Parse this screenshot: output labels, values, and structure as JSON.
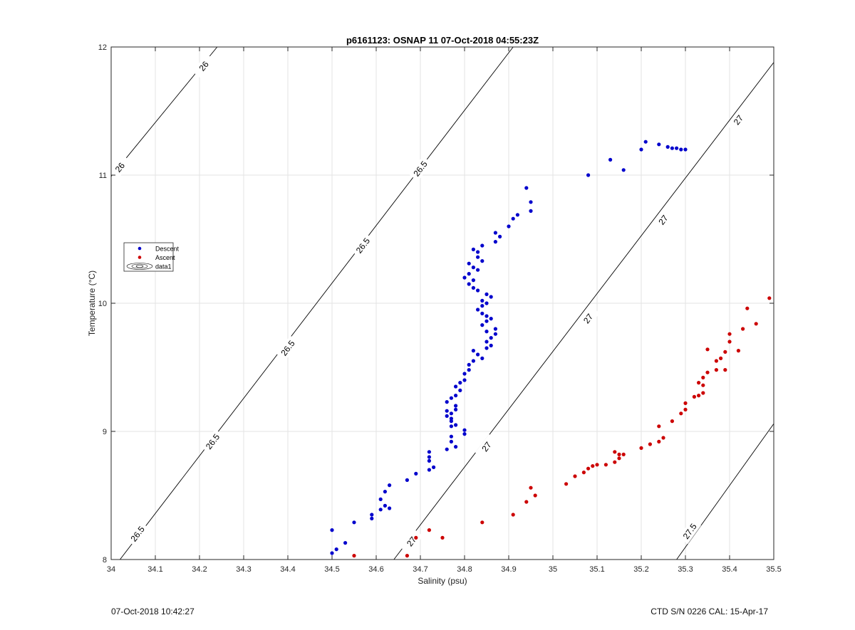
{
  "chart_data": {
    "type": "scatter",
    "title": "p6161123: OSNAP 11 07-Oct-2018 04:55:23Z",
    "xlabel": "Salinity (psu)",
    "ylabel": "Temperature (°C)",
    "xlim": [
      34,
      35.5
    ],
    "ylim": [
      8,
      12
    ],
    "xticks": [
      34,
      34.1,
      34.2,
      34.3,
      34.4,
      34.5,
      34.6,
      34.7,
      34.8,
      34.9,
      35,
      35.1,
      35.2,
      35.3,
      35.4,
      35.5
    ],
    "xtick_labels": [
      "34",
      "34.1",
      "34.2",
      "34.3",
      "34.4",
      "34.5",
      "34.6",
      "34.7",
      "34.8",
      "34.9",
      "35",
      "35.1",
      "35.2",
      "35.3",
      "35.4",
      "35.5"
    ],
    "yticks": [
      8,
      9,
      10,
      11,
      12
    ],
    "ytick_labels": [
      "8",
      "9",
      "10",
      "11",
      "12"
    ],
    "grid": true,
    "legend": {
      "placement": "left",
      "entries": [
        {
          "label": "Descent",
          "marker": "dot",
          "color": "#0000cc"
        },
        {
          "label": "Ascent",
          "marker": "dot",
          "color": "#cc0000"
        },
        {
          "label": "data1",
          "marker": "contour",
          "color": "#000000"
        }
      ]
    },
    "contours": [
      {
        "level": "26",
        "lines": [
          [
            [
              34.0,
              10.99
            ],
            [
              34.24,
              12.0
            ]
          ]
        ],
        "labels": [
          {
            "text": "26",
            "x": 34.21,
            "y": 11.85
          },
          {
            "text": "26",
            "x": 34.02,
            "y": 11.06
          }
        ]
      },
      {
        "level": "26.5",
        "lines": [
          [
            [
              34.02,
              8.0
            ],
            [
              34.91,
              12.0
            ]
          ]
        ],
        "labels": [
          {
            "text": "26.5",
            "x": 34.7,
            "y": 11.05
          },
          {
            "text": "26.5",
            "x": 34.57,
            "y": 10.45
          },
          {
            "text": "26.5",
            "x": 34.4,
            "y": 9.65
          },
          {
            "text": "26.5",
            "x": 34.23,
            "y": 8.92
          },
          {
            "text": "26.5",
            "x": 34.06,
            "y": 8.2
          }
        ]
      },
      {
        "level": "27",
        "lines": [
          [
            [
              34.64,
              8.0
            ],
            [
              35.5,
              11.88
            ]
          ]
        ],
        "labels": [
          {
            "text": "27",
            "x": 35.42,
            "y": 11.43
          },
          {
            "text": "27",
            "x": 35.25,
            "y": 10.65
          },
          {
            "text": "27",
            "x": 35.08,
            "y": 9.88
          },
          {
            "text": "27",
            "x": 34.85,
            "y": 8.88
          },
          {
            "text": "27",
            "x": 34.68,
            "y": 8.14
          }
        ]
      },
      {
        "level": "27.5",
        "lines": [
          [
            [
              35.28,
              8.0
            ],
            [
              35.5,
              9.06
            ]
          ]
        ],
        "labels": [
          {
            "text": "27.5",
            "x": 35.31,
            "y": 8.22
          }
        ]
      }
    ],
    "series": [
      {
        "name": "Descent",
        "color": "#0000cc",
        "points": [
          [
            34.5,
            8.05
          ],
          [
            34.51,
            8.08
          ],
          [
            34.5,
            8.23
          ],
          [
            34.53,
            8.13
          ],
          [
            34.55,
            8.29
          ],
          [
            34.59,
            8.32
          ],
          [
            34.59,
            8.35
          ],
          [
            34.61,
            8.39
          ],
          [
            34.62,
            8.42
          ],
          [
            34.61,
            8.47
          ],
          [
            34.63,
            8.4
          ],
          [
            34.62,
            8.53
          ],
          [
            34.63,
            8.58
          ],
          [
            34.67,
            8.62
          ],
          [
            34.69,
            8.67
          ],
          [
            34.72,
            8.7
          ],
          [
            34.73,
            8.72
          ],
          [
            34.72,
            8.77
          ],
          [
            34.72,
            8.8
          ],
          [
            34.72,
            8.84
          ],
          [
            34.76,
            8.86
          ],
          [
            34.78,
            8.88
          ],
          [
            34.77,
            8.92
          ],
          [
            34.77,
            8.96
          ],
          [
            34.8,
            8.98
          ],
          [
            34.8,
            9.01
          ],
          [
            34.78,
            9.05
          ],
          [
            34.77,
            9.04
          ],
          [
            34.77,
            9.08
          ],
          [
            34.77,
            9.1
          ],
          [
            34.76,
            9.12
          ],
          [
            34.77,
            9.14
          ],
          [
            34.76,
            9.16
          ],
          [
            34.78,
            9.17
          ],
          [
            34.78,
            9.2
          ],
          [
            34.76,
            9.23
          ],
          [
            34.77,
            9.26
          ],
          [
            34.78,
            9.28
          ],
          [
            34.79,
            9.32
          ],
          [
            34.78,
            9.35
          ],
          [
            34.79,
            9.38
          ],
          [
            34.8,
            9.4
          ],
          [
            34.8,
            9.45
          ],
          [
            34.81,
            9.48
          ],
          [
            34.81,
            9.52
          ],
          [
            34.82,
            9.55
          ],
          [
            34.84,
            9.57
          ],
          [
            34.83,
            9.6
          ],
          [
            34.82,
            9.63
          ],
          [
            34.85,
            9.65
          ],
          [
            34.86,
            9.67
          ],
          [
            34.85,
            9.7
          ],
          [
            34.86,
            9.73
          ],
          [
            34.87,
            9.76
          ],
          [
            34.85,
            9.78
          ],
          [
            34.87,
            9.8
          ],
          [
            34.84,
            9.83
          ],
          [
            34.85,
            9.86
          ],
          [
            34.86,
            9.88
          ],
          [
            34.85,
            9.9
          ],
          [
            34.84,
            9.92
          ],
          [
            34.83,
            9.95
          ],
          [
            34.84,
            9.98
          ],
          [
            34.85,
            10.0
          ],
          [
            34.84,
            10.02
          ],
          [
            34.86,
            10.05
          ],
          [
            34.85,
            10.07
          ],
          [
            34.83,
            10.1
          ],
          [
            34.82,
            10.12
          ],
          [
            34.81,
            10.15
          ],
          [
            34.82,
            10.18
          ],
          [
            34.8,
            10.2
          ],
          [
            34.81,
            10.23
          ],
          [
            34.83,
            10.26
          ],
          [
            34.82,
            10.28
          ],
          [
            34.81,
            10.31
          ],
          [
            34.84,
            10.33
          ],
          [
            34.83,
            10.36
          ],
          [
            34.83,
            10.4
          ],
          [
            34.82,
            10.42
          ],
          [
            34.84,
            10.45
          ],
          [
            34.87,
            10.48
          ],
          [
            34.88,
            10.52
          ],
          [
            34.87,
            10.55
          ],
          [
            34.9,
            10.6
          ],
          [
            34.91,
            10.66
          ],
          [
            34.92,
            10.69
          ],
          [
            34.95,
            10.72
          ],
          [
            34.95,
            10.79
          ],
          [
            34.94,
            10.9
          ],
          [
            35.08,
            11.0
          ],
          [
            35.16,
            11.04
          ],
          [
            35.13,
            11.12
          ],
          [
            35.2,
            11.2
          ],
          [
            35.21,
            11.26
          ],
          [
            35.24,
            11.24
          ],
          [
            35.26,
            11.22
          ],
          [
            35.27,
            11.21
          ],
          [
            35.28,
            11.21
          ],
          [
            35.29,
            11.2
          ],
          [
            35.3,
            11.2
          ]
        ]
      },
      {
        "name": "Ascent",
        "color": "#cc0000",
        "points": [
          [
            34.55,
            8.03
          ],
          [
            34.67,
            8.03
          ],
          [
            34.69,
            8.17
          ],
          [
            34.72,
            8.23
          ],
          [
            34.75,
            8.17
          ],
          [
            34.84,
            8.29
          ],
          [
            34.91,
            8.35
          ],
          [
            34.94,
            8.45
          ],
          [
            34.96,
            8.5
          ],
          [
            34.95,
            8.56
          ],
          [
            35.03,
            8.59
          ],
          [
            35.05,
            8.65
          ],
          [
            35.07,
            8.68
          ],
          [
            35.08,
            8.71
          ],
          [
            35.09,
            8.73
          ],
          [
            35.1,
            8.74
          ],
          [
            35.12,
            8.74
          ],
          [
            35.14,
            8.76
          ],
          [
            35.15,
            8.79
          ],
          [
            35.15,
            8.82
          ],
          [
            35.16,
            8.82
          ],
          [
            35.14,
            8.84
          ],
          [
            35.2,
            8.87
          ],
          [
            35.22,
            8.9
          ],
          [
            35.24,
            8.92
          ],
          [
            35.25,
            8.95
          ],
          [
            35.24,
            9.04
          ],
          [
            35.27,
            9.08
          ],
          [
            35.29,
            9.14
          ],
          [
            35.3,
            9.17
          ],
          [
            35.3,
            9.22
          ],
          [
            35.32,
            9.27
          ],
          [
            35.33,
            9.28
          ],
          [
            35.34,
            9.3
          ],
          [
            35.34,
            9.36
          ],
          [
            35.33,
            9.38
          ],
          [
            35.34,
            9.42
          ],
          [
            35.35,
            9.46
          ],
          [
            35.37,
            9.48
          ],
          [
            35.39,
            9.48
          ],
          [
            35.37,
            9.55
          ],
          [
            35.38,
            9.57
          ],
          [
            35.39,
            9.62
          ],
          [
            35.42,
            9.63
          ],
          [
            35.35,
            9.64
          ],
          [
            35.4,
            9.7
          ],
          [
            35.4,
            9.76
          ],
          [
            35.43,
            9.8
          ],
          [
            35.46,
            9.84
          ],
          [
            35.44,
            9.96
          ],
          [
            35.49,
            10.04
          ]
        ]
      }
    ]
  },
  "footer": {
    "left": "07-Oct-2018 10:42:27",
    "right": "CTD S/N 0226  CAL: 15-Apr-17"
  }
}
